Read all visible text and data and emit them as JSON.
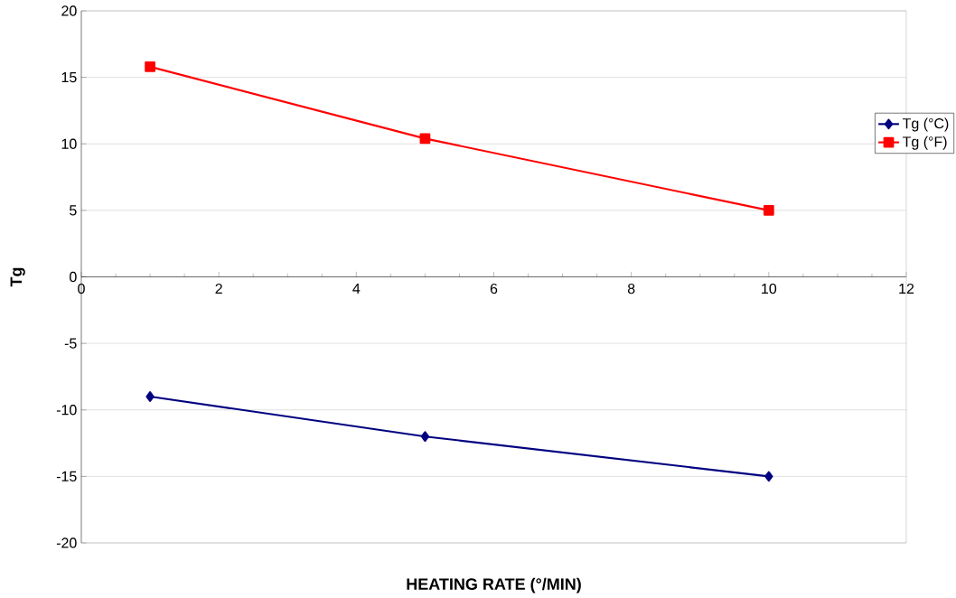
{
  "chart_data": {
    "type": "line",
    "xlabel": "HEATING RATE (°/MIN)",
    "ylabel": "Tg",
    "x": [
      1,
      5,
      10
    ],
    "series": [
      {
        "name": "Tg (°C)",
        "color": "#000080",
        "marker": "diamond",
        "values": [
          -9,
          -12,
          -15
        ]
      },
      {
        "name": "Tg (°F)",
        "color": "#ff0000",
        "marker": "square",
        "values": [
          15.8,
          10.4,
          5
        ]
      }
    ],
    "xlim": [
      0,
      12
    ],
    "xticks": [
      0,
      2,
      4,
      6,
      8,
      10,
      12
    ],
    "ylim": [
      -20,
      20
    ],
    "yticks": [
      -20,
      -15,
      -10,
      -5,
      0,
      5,
      10,
      15,
      20
    ],
    "grid": "y",
    "legend": "right",
    "line_style": "solid"
  }
}
